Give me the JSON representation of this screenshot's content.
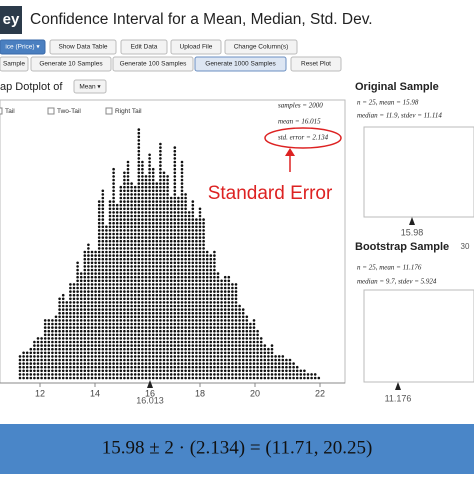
{
  "header": {
    "logo": "ey",
    "title": "Confidence Interval for a Mean, Median, Std. Dev."
  },
  "toolbar": [
    "ice (Price) ▾",
    "Show Data Table",
    "Edit Data",
    "Upload File",
    "Change Column(s)"
  ],
  "generate": [
    "Sample",
    "Generate 10 Samples",
    "Generate 100 Samples",
    "Generate 1000 Samples",
    "Reset Plot"
  ],
  "dotplot": {
    "title": "ap Dotplot of",
    "statistic": "Mean ▾",
    "tails": [
      "Tail",
      "Two-Tail",
      "Right Tail"
    ],
    "stats": [
      "samples = 2000",
      "mean = 16.015",
      "std. error = 2.134"
    ],
    "annotation": "Standard Error",
    "xticks": [
      "12",
      "14",
      "16",
      "18",
      "20",
      "22"
    ],
    "marker": "16.013"
  },
  "original": {
    "title": "Original Sample",
    "line1": "n = 25, mean = 15.98",
    "line2": "median = 11.9, stdev = 11.114",
    "marker": "15.98"
  },
  "bootstrap": {
    "title": "Bootstrap Sample",
    "corner": "30",
    "line1": "n = 25, mean = 11.176",
    "line2": "median = 9.7, stdev = 5.924",
    "marker": "11.176"
  },
  "formula": "15.98 ± 2 · (2.134) = (11.71, 20.25)"
}
